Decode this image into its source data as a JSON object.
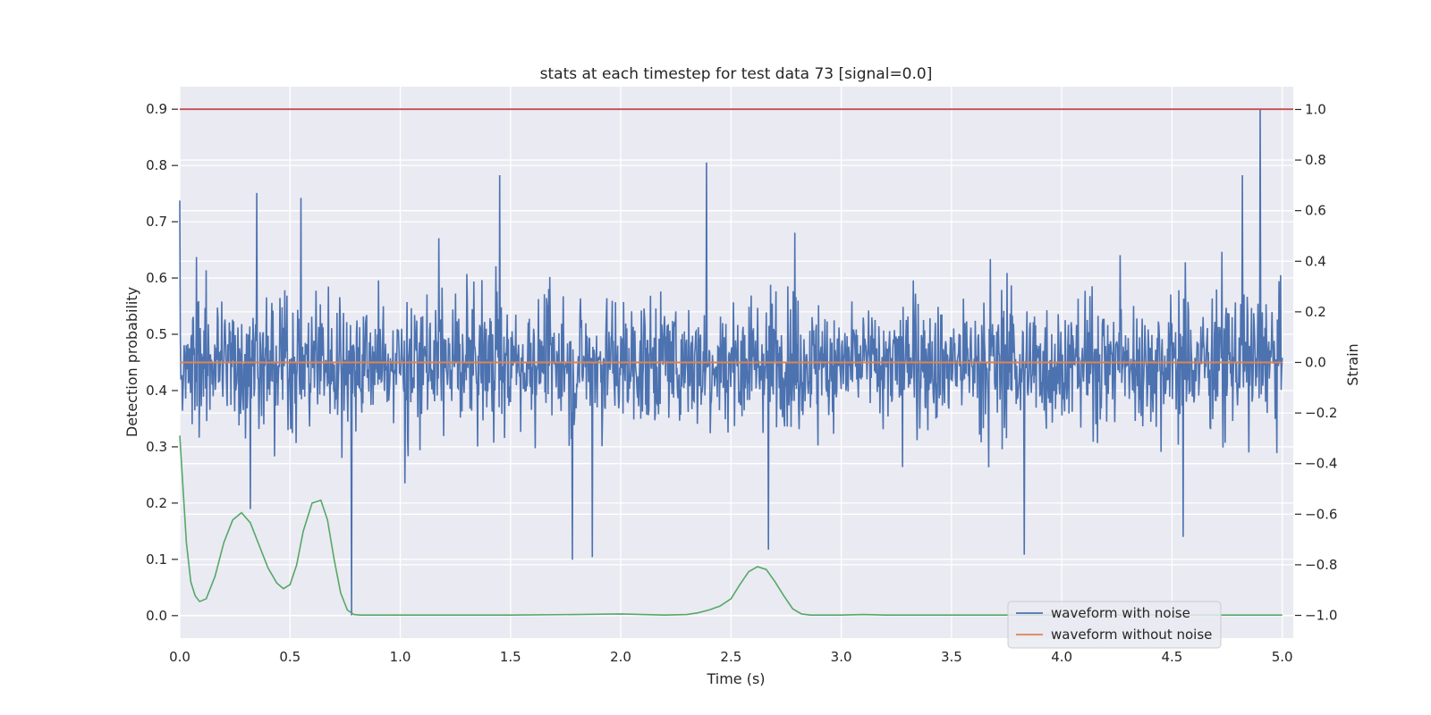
{
  "chart_data": {
    "type": "line",
    "title": "stats at each timestep for test data 73 [signal=0.0]",
    "xlabel": "Time (s)",
    "ylabel_left": "Detection probability",
    "ylabel_right": "Strain",
    "xlim": [
      0.0,
      5.05
    ],
    "ylim_left": [
      -0.04,
      0.94
    ],
    "ylim_right": [
      -1.09,
      1.09
    ],
    "x_ticks": [
      "0.0",
      "0.5",
      "1.0",
      "1.5",
      "2.0",
      "2.5",
      "3.0",
      "3.5",
      "4.0",
      "4.5",
      "5.0"
    ],
    "y_ticks_left": [
      "0.0",
      "0.1",
      "0.2",
      "0.3",
      "0.4",
      "0.5",
      "0.6",
      "0.7",
      "0.8",
      "0.9"
    ],
    "y_ticks_right": [
      "−1.0",
      "−0.8",
      "−0.6",
      "−0.4",
      "−0.2",
      "0.0",
      "0.2",
      "0.4",
      "0.6",
      "0.8",
      "1.0"
    ],
    "grid": true,
    "legend_position": "lower-right",
    "threshold": {
      "value": 0.9,
      "axis": "left",
      "color": "#c44e52"
    },
    "series": [
      {
        "name": "waveform with noise",
        "axis": "right",
        "color": "#4c72b0",
        "noise_envelope": {
          "typical_low": -0.22,
          "typical_high": 0.22,
          "min": -1.0,
          "max": 1.0,
          "samples": 2048
        },
        "spikes": [
          {
            "x": 0.0,
            "y": 0.64
          },
          {
            "x": 0.35,
            "y": 0.67
          },
          {
            "x": 0.55,
            "y": 0.65
          },
          {
            "x": 0.32,
            "y": -0.58
          },
          {
            "x": 0.78,
            "y": -1.0
          },
          {
            "x": 1.45,
            "y": 0.74
          },
          {
            "x": 1.78,
            "y": -0.78
          },
          {
            "x": 1.87,
            "y": -0.77
          },
          {
            "x": 2.39,
            "y": 0.79
          },
          {
            "x": 2.67,
            "y": -0.74
          },
          {
            "x": 3.83,
            "y": -0.76
          },
          {
            "x": 4.55,
            "y": -0.69
          },
          {
            "x": 4.82,
            "y": 0.74
          },
          {
            "x": 4.9,
            "y": 1.0
          }
        ]
      },
      {
        "name": "waveform without noise",
        "axis": "right",
        "color": "#dd8452",
        "x": [
          0.0,
          5.0
        ],
        "y": [
          0.0,
          0.0
        ]
      },
      {
        "name": "",
        "axis": "left",
        "color": "#55a868",
        "x": [
          0.0,
          0.03,
          0.05,
          0.07,
          0.09,
          0.12,
          0.16,
          0.2,
          0.24,
          0.28,
          0.32,
          0.36,
          0.4,
          0.44,
          0.47,
          0.5,
          0.53,
          0.56,
          0.6,
          0.64,
          0.67,
          0.7,
          0.73,
          0.76,
          0.79,
          0.82,
          1.0,
          1.5,
          1.8,
          2.0,
          2.1,
          2.2,
          2.3,
          2.35,
          2.4,
          2.45,
          2.5,
          2.54,
          2.58,
          2.62,
          2.66,
          2.7,
          2.74,
          2.78,
          2.82,
          2.86,
          3.0,
          3.1,
          3.2,
          3.5,
          4.0,
          4.5,
          5.0
        ],
        "y": [
          0.32,
          0.13,
          0.06,
          0.035,
          0.025,
          0.03,
          0.07,
          0.13,
          0.17,
          0.183,
          0.165,
          0.125,
          0.085,
          0.058,
          0.048,
          0.055,
          0.09,
          0.15,
          0.2,
          0.205,
          0.17,
          0.1,
          0.04,
          0.01,
          0.002,
          0.001,
          0.001,
          0.001,
          0.002,
          0.003,
          0.002,
          0.001,
          0.002,
          0.005,
          0.01,
          0.017,
          0.03,
          0.055,
          0.078,
          0.087,
          0.082,
          0.06,
          0.035,
          0.012,
          0.003,
          0.001,
          0.001,
          0.002,
          0.001,
          0.001,
          0.001,
          0.001,
          0.001
        ]
      }
    ]
  }
}
